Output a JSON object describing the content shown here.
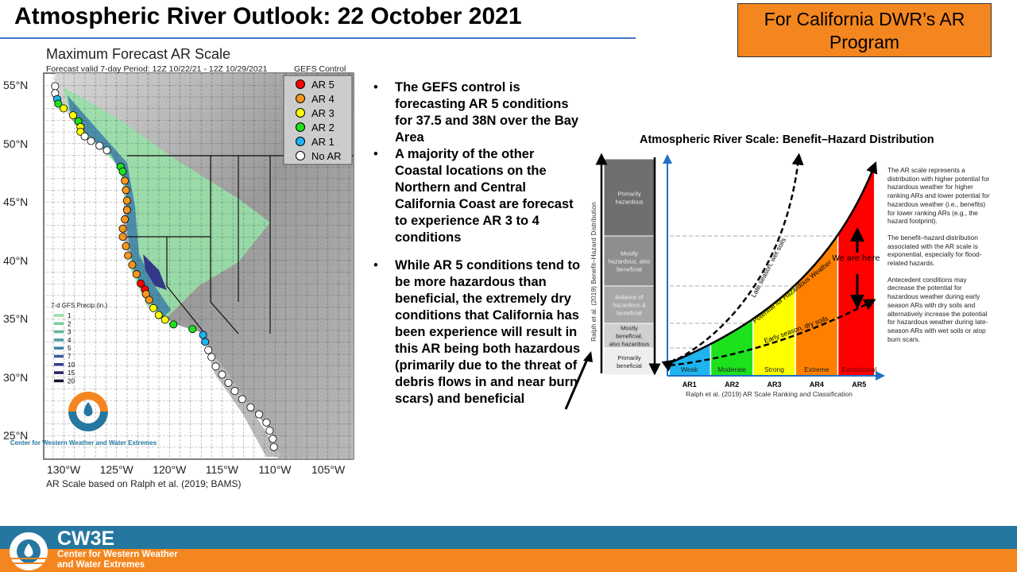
{
  "header": {
    "title": "Atmospheric River Outlook: 22 October 2021",
    "badge": "For California DWR’s AR Program"
  },
  "map": {
    "title": "Maximum Forecast AR Scale",
    "subtitle": "Forecast valid 7-day Period: 12Z 10/22/21 - 12Z 10/29/2021",
    "model": "GEFS Control",
    "credit": "AR Scale based on Ralph et al. (2019; BAMS)",
    "lat_ticks": [
      "55°N",
      "50°N",
      "45°N",
      "40°N",
      "35°N",
      "30°N",
      "25°N"
    ],
    "lon_ticks": [
      "130°W",
      "125°W",
      "120°W",
      "115°W",
      "110°W",
      "105°W"
    ],
    "legend": [
      {
        "label": "AR 5",
        "color": "#ff0000"
      },
      {
        "label": "AR 4",
        "color": "#f7961e"
      },
      {
        "label": "AR 3",
        "color": "#ffff00"
      },
      {
        "label": "AR 2",
        "color": "#1ee11e"
      },
      {
        "label": "AR 1",
        "color": "#1eb4f0"
      },
      {
        "label": "No AR",
        "color": "#ffffff"
      }
    ],
    "precip_legend": {
      "title": "7-d GFS Precip (in.)",
      "items": [
        {
          "label": "1",
          "color": "#98e0a8"
        },
        {
          "label": "2",
          "color": "#78d0a0"
        },
        {
          "label": "3",
          "color": "#5bb8a0"
        },
        {
          "label": "4",
          "color": "#4a9ea8"
        },
        {
          "label": "5",
          "color": "#3d7fa8"
        },
        {
          "label": "7",
          "color": "#34589e"
        },
        {
          "label": "10",
          "color": "#34388a"
        },
        {
          "label": "15",
          "color": "#2a2260"
        },
        {
          "label": "20",
          "color": "#1a1030"
        }
      ]
    },
    "logo_text": "Center for Western Weather and Water Extremes",
    "ar_points": [
      {
        "lat": 54.9,
        "lon": -130.8,
        "level": "No AR"
      },
      {
        "lat": 54.3,
        "lon": -130.8,
        "level": "No AR"
      },
      {
        "lat": 53.8,
        "lon": -130.6,
        "level": "AR 1"
      },
      {
        "lat": 53.4,
        "lon": -130.5,
        "level": "AR 2"
      },
      {
        "lat": 53.0,
        "lon": -130.0,
        "level": "AR 3"
      },
      {
        "lat": 52.4,
        "lon": -129.1,
        "level": "AR 3"
      },
      {
        "lat": 51.9,
        "lon": -128.6,
        "level": "AR 2"
      },
      {
        "lat": 51.4,
        "lon": -128.4,
        "level": "AR 3"
      },
      {
        "lat": 51.0,
        "lon": -128.4,
        "level": "AR 3"
      },
      {
        "lat": 50.6,
        "lon": -128.0,
        "level": "No AR"
      },
      {
        "lat": 50.2,
        "lon": -127.4,
        "level": "No AR"
      },
      {
        "lat": 49.8,
        "lon": -126.6,
        "level": "No AR"
      },
      {
        "lat": 49.4,
        "lon": -125.9,
        "level": "No AR"
      },
      {
        "lat": 48.0,
        "lon": -124.6,
        "level": "AR 2"
      },
      {
        "lat": 47.6,
        "lon": -124.4,
        "level": "AR 2"
      },
      {
        "lat": 46.8,
        "lon": -124.2,
        "level": "AR 4"
      },
      {
        "lat": 46.0,
        "lon": -124.1,
        "level": "AR 4"
      },
      {
        "lat": 45.1,
        "lon": -124.0,
        "level": "AR 4"
      },
      {
        "lat": 44.3,
        "lon": -124.0,
        "level": "AR 4"
      },
      {
        "lat": 43.5,
        "lon": -124.2,
        "level": "AR 4"
      },
      {
        "lat": 42.7,
        "lon": -124.4,
        "level": "AR 4"
      },
      {
        "lat": 42.0,
        "lon": -124.4,
        "level": "AR 4"
      },
      {
        "lat": 41.2,
        "lon": -124.1,
        "level": "AR 4"
      },
      {
        "lat": 40.4,
        "lon": -123.9,
        "level": "AR 4"
      },
      {
        "lat": 39.6,
        "lon": -123.5,
        "level": "AR 4"
      },
      {
        "lat": 38.8,
        "lon": -123.1,
        "level": "AR 4"
      },
      {
        "lat": 38.0,
        "lon": -122.7,
        "level": "AR 5"
      },
      {
        "lat": 37.5,
        "lon": -122.3,
        "level": "AR 5"
      },
      {
        "lat": 37.1,
        "lon": -122.2,
        "level": "AR 4"
      },
      {
        "lat": 36.6,
        "lon": -121.9,
        "level": "AR 4"
      },
      {
        "lat": 35.9,
        "lon": -121.5,
        "level": "AR 3"
      },
      {
        "lat": 35.3,
        "lon": -121.0,
        "level": "AR 3"
      },
      {
        "lat": 34.9,
        "lon": -120.4,
        "level": "AR 3"
      },
      {
        "lat": 34.5,
        "lon": -119.6,
        "level": "AR 2"
      },
      {
        "lat": 34.1,
        "lon": -117.8,
        "level": "AR 2"
      },
      {
        "lat": 33.6,
        "lon": -116.8,
        "level": "AR 1"
      },
      {
        "lat": 33.0,
        "lon": -116.6,
        "level": "AR 1"
      },
      {
        "lat": 32.3,
        "lon": -116.3,
        "level": "No AR"
      },
      {
        "lat": 31.7,
        "lon": -116.0,
        "level": "No AR"
      },
      {
        "lat": 30.9,
        "lon": -115.6,
        "level": "No AR"
      },
      {
        "lat": 30.2,
        "lon": -115.0,
        "level": "No AR"
      },
      {
        "lat": 29.5,
        "lon": -114.4,
        "level": "No AR"
      },
      {
        "lat": 28.8,
        "lon": -113.8,
        "level": "No AR"
      },
      {
        "lat": 28.1,
        "lon": -113.1,
        "level": "No AR"
      },
      {
        "lat": 27.4,
        "lon": -112.3,
        "level": "No AR"
      },
      {
        "lat": 26.8,
        "lon": -111.5,
        "level": "No AR"
      },
      {
        "lat": 26.1,
        "lon": -110.8,
        "level": "No AR"
      },
      {
        "lat": 25.4,
        "lon": -110.5,
        "level": "No AR"
      },
      {
        "lat": 24.7,
        "lon": -110.2,
        "level": "No AR"
      },
      {
        "lat": 24.0,
        "lon": -110.1,
        "level": "No AR"
      }
    ]
  },
  "bullets": [
    "The GEFS control is forecasting AR 5 conditions for 37.5 and 38N over the Bay Area",
    "A majority of the other Coastal locations on the Northern and Central California Coast are forecast to experience AR 3 to 4 conditions",
    "While AR 5 conditions tend to be more hazardous than beneficial, the extremely dry conditions that California has been experience will result in this AR  being both hazardous (primarily due to the threat of debris flows in and near burn scars) and beneficial"
  ],
  "diagram": {
    "title": "Atmospheric River Scale: Benefit–Hazard Distribution",
    "y_axis_label": "Ralph et al. (2019) Benefit–Hazard Distribution",
    "x_axis_label": "Ralph et al. (2019) AR Scale Ranking and Classification",
    "bar_segments": [
      "Primarily hazardous",
      "Mostly hazardous, also beneficial",
      "Balance of hazardous & beneficial",
      "Mostly beneficial, also hazardous",
      "Primarily beneficial"
    ],
    "categories": [
      {
        "rank": "AR1",
        "label": "Weak",
        "color": "#1eb4f0"
      },
      {
        "rank": "AR2",
        "label": "Moderate",
        "color": "#1ee11e"
      },
      {
        "rank": "AR3",
        "label": "Strong",
        "color": "#ffff00"
      },
      {
        "rank": "AR4",
        "label": "Extreme",
        "color": "#ff8000"
      },
      {
        "rank": "AR5",
        "label": "Exceptional",
        "color": "#ff0000"
      }
    ],
    "curve_labels": {
      "main": "Potential for Hazardous Weather",
      "late": "Late season, wet soils",
      "early": "Early season, dry soils"
    },
    "annotation": "We are here",
    "notes": [
      "The AR scale represents a distribution with higher potential for hazardous weather for higher ranking ARs and lower potential for hazardous weather (i.e., benefits) for lower ranking ARs (e.g., the hazard footprint).",
      "The benefit–hazard distribution associated with the AR scale is exponential, especially for flood-related hazards.",
      "Antecedent conditions may decrease the potential for hazardous weather during early season ARs with dry soils and alternatively increase the potential for hazardous weather during late-season ARs with wet soils or atop burn scars."
    ]
  },
  "footer": {
    "name": "CW3E",
    "line1": "Center for Western Weather",
    "line2": "and Water Extremes"
  }
}
